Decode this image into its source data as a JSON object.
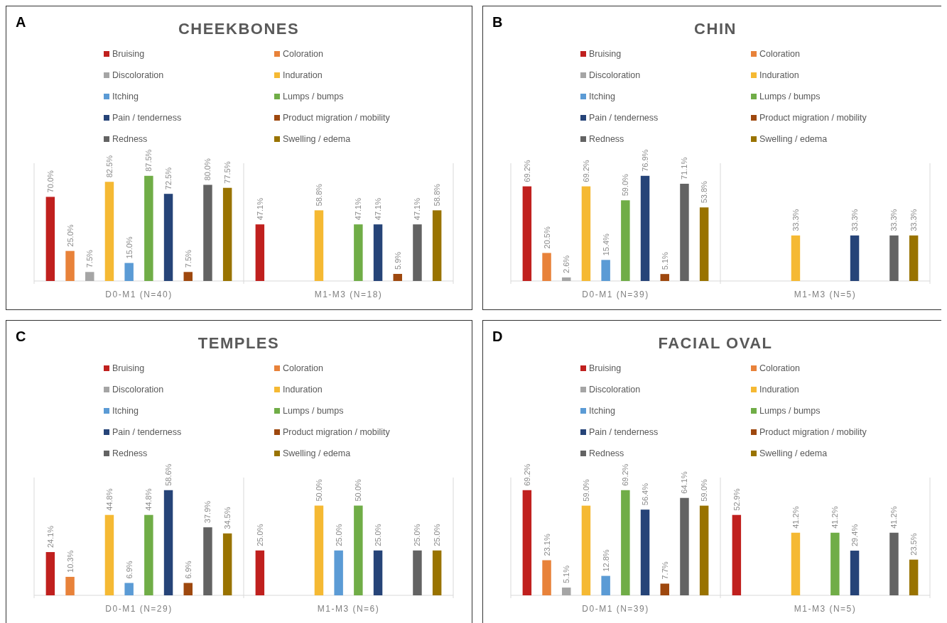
{
  "chart_data": [
    {
      "type": "bar",
      "title": "CHEEKBONES",
      "annotations": [
        "A"
      ],
      "categories": [
        "D0-M1 (N=40)",
        "M1-M3 (N=18)"
      ],
      "legend": "top",
      "series": [
        {
          "name": "Bruising",
          "color": "#c0201e",
          "values": [
            70.0,
            47.1
          ],
          "value_labels": [
            "70.0%",
            "47.1%"
          ]
        },
        {
          "name": "Coloration",
          "color": "#e8823a",
          "values": [
            25.0,
            null
          ],
          "value_labels": [
            "25.0%",
            null
          ]
        },
        {
          "name": "Discoloration",
          "color": "#a5a5a5",
          "values": [
            7.5,
            null
          ],
          "value_labels": [
            "7.5%",
            null
          ]
        },
        {
          "name": "Induration",
          "color": "#f5b933",
          "values": [
            82.5,
            58.8
          ],
          "value_labels": [
            "82.5%",
            "58.8%"
          ]
        },
        {
          "name": "Itching",
          "color": "#5b9bd5",
          "values": [
            15.0,
            null
          ],
          "value_labels": [
            "15.0%",
            null
          ]
        },
        {
          "name": "Lumps / bumps",
          "color": "#70ad47",
          "values": [
            87.5,
            47.1
          ],
          "value_labels": [
            "87.5%",
            "47.1%"
          ]
        },
        {
          "name": "Pain / tenderness",
          "color": "#264478",
          "values": [
            72.5,
            47.1
          ],
          "value_labels": [
            "72.5%",
            "47.1%"
          ]
        },
        {
          "name": "Product migration / mobility",
          "color": "#9e480e",
          "values": [
            7.5,
            5.9
          ],
          "value_labels": [
            "7.5%",
            "5.9%"
          ]
        },
        {
          "name": "Redness",
          "color": "#636363",
          "values": [
            80.0,
            47.1
          ],
          "value_labels": [
            "80.0%",
            "47.1%"
          ]
        },
        {
          "name": "Swelling / edema",
          "color": "#997300",
          "values": [
            77.5,
            58.8
          ],
          "value_labels": [
            "77.5%",
            "58.8%"
          ]
        }
      ]
    },
    {
      "type": "bar",
      "title": "CHIN",
      "annotations": [
        "B"
      ],
      "categories": [
        "D0-M1 (N=39)",
        "M1-M3 (N=5)"
      ],
      "legend": "top",
      "series": [
        {
          "name": "Bruising",
          "color": "#c0201e",
          "values": [
            69.2,
            null
          ],
          "value_labels": [
            "69.2%",
            null
          ]
        },
        {
          "name": "Coloration",
          "color": "#e8823a",
          "values": [
            20.5,
            null
          ],
          "value_labels": [
            "20.5%",
            null
          ]
        },
        {
          "name": "Discoloration",
          "color": "#a5a5a5",
          "values": [
            2.6,
            null
          ],
          "value_labels": [
            "2.6%",
            null
          ]
        },
        {
          "name": "Induration",
          "color": "#f5b933",
          "values": [
            69.2,
            33.3
          ],
          "value_labels": [
            "69.2%",
            "33.3%"
          ]
        },
        {
          "name": "Itching",
          "color": "#5b9bd5",
          "values": [
            15.4,
            null
          ],
          "value_labels": [
            "15.4%",
            null
          ]
        },
        {
          "name": "Lumps / bumps",
          "color": "#70ad47",
          "values": [
            59.0,
            null
          ],
          "value_labels": [
            "59.0%",
            null
          ]
        },
        {
          "name": "Pain / tenderness",
          "color": "#264478",
          "values": [
            76.9,
            33.3
          ],
          "value_labels": [
            "76.9%",
            "33.3%"
          ]
        },
        {
          "name": "Product migration / mobility",
          "color": "#9e480e",
          "values": [
            5.1,
            null
          ],
          "value_labels": [
            "5.1%",
            null
          ]
        },
        {
          "name": "Redness",
          "color": "#636363",
          "values": [
            71.1,
            33.3
          ],
          "value_labels": [
            "71.1%",
            "33.3%"
          ]
        },
        {
          "name": "Swelling / edema",
          "color": "#997300",
          "values": [
            53.8,
            33.3
          ],
          "value_labels": [
            "53.8%",
            "33.3%"
          ]
        }
      ]
    },
    {
      "type": "bar",
      "title": "TEMPLES",
      "annotations": [
        "C"
      ],
      "categories": [
        "D0-M1 (N=29)",
        "M1-M3 (N=6)"
      ],
      "legend": "top",
      "series": [
        {
          "name": "Bruising",
          "color": "#c0201e",
          "values": [
            24.1,
            25.0
          ],
          "value_labels": [
            "24.1%",
            "25.0%"
          ]
        },
        {
          "name": "Coloration",
          "color": "#e8823a",
          "values": [
            10.3,
            null
          ],
          "value_labels": [
            "10.3%",
            null
          ]
        },
        {
          "name": "Discoloration",
          "color": "#a5a5a5",
          "values": [
            null,
            null
          ],
          "value_labels": [
            null,
            null
          ]
        },
        {
          "name": "Induration",
          "color": "#f5b933",
          "values": [
            44.8,
            50.0
          ],
          "value_labels": [
            "44.8%",
            "50.0%"
          ]
        },
        {
          "name": "Itching",
          "color": "#5b9bd5",
          "values": [
            6.9,
            25.0
          ],
          "value_labels": [
            "6.9%",
            "25.0%"
          ]
        },
        {
          "name": "Lumps / bumps",
          "color": "#70ad47",
          "values": [
            44.8,
            50.0
          ],
          "value_labels": [
            "44.8%",
            "50.0%"
          ]
        },
        {
          "name": "Pain / tenderness",
          "color": "#264478",
          "values": [
            58.6,
            25.0
          ],
          "value_labels": [
            "58.6%",
            "25.0%"
          ]
        },
        {
          "name": "Product migration / mobility",
          "color": "#9e480e",
          "values": [
            6.9,
            null
          ],
          "value_labels": [
            "6.9%",
            null
          ]
        },
        {
          "name": "Redness",
          "color": "#636363",
          "values": [
            37.9,
            25.0
          ],
          "value_labels": [
            "37.9%",
            "25.0%"
          ]
        },
        {
          "name": "Swelling / edema",
          "color": "#997300",
          "values": [
            34.5,
            25.0
          ],
          "value_labels": [
            "34.5%",
            "25.0%"
          ]
        }
      ]
    },
    {
      "type": "bar",
      "title": "FACIAL OVAL",
      "annotations": [
        "D"
      ],
      "categories": [
        "D0-M1 (N=39)",
        "M1-M3 (N=5)"
      ],
      "legend": "top",
      "series": [
        {
          "name": "Bruising",
          "color": "#c0201e",
          "values": [
            69.2,
            52.9
          ],
          "value_labels": [
            "69.2%",
            "52.9%"
          ]
        },
        {
          "name": "Coloration",
          "color": "#e8823a",
          "values": [
            23.1,
            null
          ],
          "value_labels": [
            "23.1%",
            null
          ]
        },
        {
          "name": "Discoloration",
          "color": "#a5a5a5",
          "values": [
            5.1,
            null
          ],
          "value_labels": [
            "5.1%",
            null
          ]
        },
        {
          "name": "Induration",
          "color": "#f5b933",
          "values": [
            59.0,
            41.2
          ],
          "value_labels": [
            "59.0%",
            "41.2%"
          ]
        },
        {
          "name": "Itching",
          "color": "#5b9bd5",
          "values": [
            12.8,
            null
          ],
          "value_labels": [
            "12.8%",
            null
          ]
        },
        {
          "name": "Lumps / bumps",
          "color": "#70ad47",
          "values": [
            69.2,
            41.2
          ],
          "value_labels": [
            "69.2%",
            "41.2%"
          ]
        },
        {
          "name": "Pain / tenderness",
          "color": "#264478",
          "values": [
            56.4,
            29.4
          ],
          "value_labels": [
            "56.4%",
            "29.4%"
          ]
        },
        {
          "name": "Product migration / mobility",
          "color": "#9e480e",
          "values": [
            7.7,
            null
          ],
          "value_labels": [
            "7.7%",
            null
          ]
        },
        {
          "name": "Redness",
          "color": "#636363",
          "values": [
            64.1,
            41.2
          ],
          "value_labels": [
            "64.1%",
            "41.2%"
          ]
        },
        {
          "name": "Swelling / edema",
          "color": "#997300",
          "values": [
            59.0,
            23.5
          ],
          "value_labels": [
            "59.0%",
            "23.5%"
          ]
        }
      ]
    }
  ]
}
